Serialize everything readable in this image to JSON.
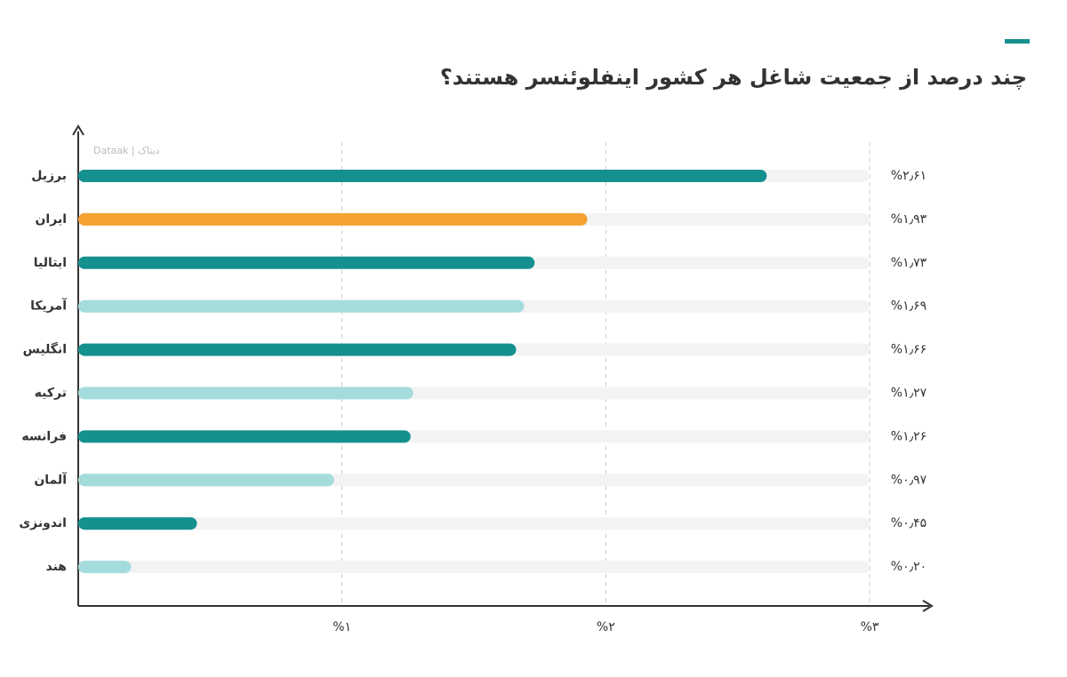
{
  "chart_data": {
    "type": "bar",
    "orientation": "horizontal",
    "title": "چند درصد از جمعیت شاغل هر کشور اینفلوئنسر هستند؟",
    "watermark": "Dataak | دیتاک",
    "categories": [
      "برزیل",
      "ایران",
      "ایتالیا",
      "آمریکا",
      "انگلیس",
      "ترکیه",
      "فرانسه",
      "آلمان",
      "اندونزی",
      "هند"
    ],
    "values": [
      2.61,
      1.93,
      1.73,
      1.69,
      1.66,
      1.27,
      1.26,
      0.97,
      0.45,
      0.2
    ],
    "value_labels": [
      "%۲٫۶۱",
      "%۱٫۹۳",
      "%۱٫۷۳",
      "%۱٫۶۹",
      "%۱٫۶۶",
      "%۱٫۲۷",
      "%۱٫۲۶",
      "%۰٫۹۷",
      "%۰٫۴۵",
      "%۰٫۲۰"
    ],
    "colors": [
      "#14908f",
      "#f4a233",
      "#14908f",
      "#a4dcdb",
      "#14908f",
      "#a4dcdb",
      "#14908f",
      "#a4dcdb",
      "#14908f",
      "#a4dcdb"
    ],
    "xlim": [
      0,
      3
    ],
    "xticks": [
      {
        "value": 1,
        "label": "%۱"
      },
      {
        "value": 2,
        "label": "%۲"
      },
      {
        "value": 3,
        "label": "%۳"
      }
    ],
    "grid": true
  }
}
